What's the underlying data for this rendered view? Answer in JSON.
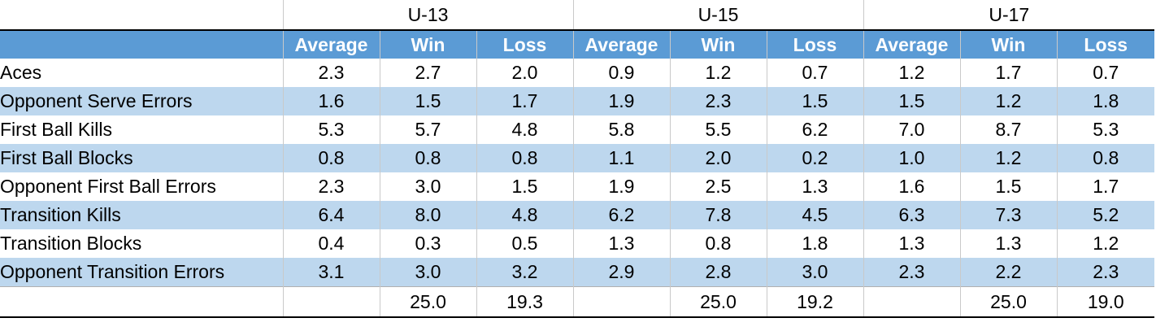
{
  "groups": [
    "U-13",
    "U-15",
    "U-17"
  ],
  "columns": [
    "Average",
    "Win",
    "Loss"
  ],
  "rows": [
    {
      "label": "Aces",
      "values": [
        "2.3",
        "2.7",
        "2.0",
        "0.9",
        "1.2",
        "0.7",
        "1.2",
        "1.7",
        "0.7"
      ]
    },
    {
      "label": "Opponent Serve Errors",
      "values": [
        "1.6",
        "1.5",
        "1.7",
        "1.9",
        "2.3",
        "1.5",
        "1.5",
        "1.2",
        "1.8"
      ]
    },
    {
      "label": "First Ball Kills",
      "values": [
        "5.3",
        "5.7",
        "4.8",
        "5.8",
        "5.5",
        "6.2",
        "7.0",
        "8.7",
        "5.3"
      ]
    },
    {
      "label": "First Ball Blocks",
      "values": [
        "0.8",
        "0.8",
        "0.8",
        "1.1",
        "2.0",
        "0.2",
        "1.0",
        "1.2",
        "0.8"
      ]
    },
    {
      "label": "Opponent First Ball Errors",
      "values": [
        "2.3",
        "3.0",
        "1.5",
        "1.9",
        "2.5",
        "1.3",
        "1.6",
        "1.5",
        "1.7"
      ]
    },
    {
      "label": "Transition Kills",
      "values": [
        "6.4",
        "8.0",
        "4.8",
        "6.2",
        "7.8",
        "4.5",
        "6.3",
        "7.3",
        "5.2"
      ]
    },
    {
      "label": "Transition Blocks",
      "values": [
        "0.4",
        "0.3",
        "0.5",
        "1.3",
        "0.8",
        "1.8",
        "1.3",
        "1.3",
        "1.2"
      ]
    },
    {
      "label": "Opponent Transition Errors",
      "values": [
        "3.1",
        "3.0",
        "3.2",
        "2.9",
        "2.8",
        "3.0",
        "2.3",
        "2.2",
        "2.3"
      ]
    }
  ],
  "totals": [
    "",
    "25.0",
    "19.3",
    "",
    "25.0",
    "19.2",
    "",
    "25.0",
    "19.0"
  ],
  "colors": {
    "header_bg": "#5b9bd5",
    "band_bg": "#bdd7ee",
    "header_text": "#ffffff"
  }
}
